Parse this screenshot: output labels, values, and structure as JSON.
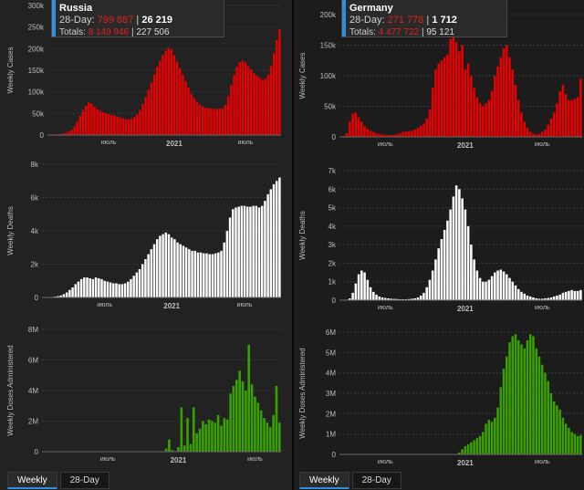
{
  "tabs": {
    "left": [
      {
        "label": "Weekly",
        "active": true
      },
      {
        "label": "28-Day",
        "active": false
      }
    ],
    "right": [
      {
        "label": "Weekly",
        "active": true
      },
      {
        "label": "28-Day",
        "active": false
      }
    ]
  },
  "infoboxes": [
    {
      "country": "Russia",
      "day28_label": "28-Day:",
      "day28_cases": "799 887",
      "day28_deaths": "26 219",
      "totals_label": "Totals:",
      "total_cases": "8 149 946",
      "total_deaths": "227 506",
      "separator": "|"
    },
    {
      "country": "Germany",
      "day28_label": "28-Day:",
      "day28_cases": "271 778",
      "day28_deaths": "1 712",
      "totals_label": "Totals:",
      "total_cases": "4 477 722",
      "total_deaths": "95 121",
      "separator": "|"
    }
  ],
  "colors": {
    "cases": "#e60000",
    "deaths": "#ffffff",
    "doses": "#3aa000",
    "axis_text": "#bdbdbd",
    "grid": "#3a3a3a",
    "accent": "#2e8fe0"
  },
  "chart_data": [
    {
      "type": "bar",
      "country": "Russia",
      "metric": "cases",
      "ylabel": "Weekly Cases",
      "ylim": [
        0,
        300000
      ],
      "yticks": [
        {
          "v": 0,
          "label": "0"
        },
        {
          "v": 50000,
          "label": "50k"
        },
        {
          "v": 100000,
          "label": "100k"
        },
        {
          "v": 150000,
          "label": "150k"
        },
        {
          "v": 200000,
          "label": "200k"
        },
        {
          "v": 250000,
          "label": "250k"
        },
        {
          "v": 300000,
          "label": "300k"
        }
      ],
      "xticks": [
        {
          "i": 21,
          "label": "июль",
          "bold": false
        },
        {
          "i": 44,
          "label": "2021",
          "bold": true
        },
        {
          "i": 69,
          "label": "июль",
          "bold": false
        }
      ],
      "values": [
        500,
        800,
        1200,
        1800,
        2500,
        3500,
        5000,
        8000,
        12000,
        20000,
        32000,
        45000,
        58000,
        68000,
        76000,
        73000,
        66000,
        60000,
        56000,
        53000,
        51000,
        49000,
        47000,
        45000,
        43000,
        41000,
        39000,
        37000,
        36000,
        38000,
        42000,
        48000,
        58000,
        72000,
        88000,
        105000,
        122000,
        140000,
        158000,
        172000,
        185000,
        195000,
        202000,
        198000,
        185000,
        170000,
        155000,
        140000,
        125000,
        110000,
        96000,
        86000,
        77000,
        70000,
        66000,
        63000,
        62000,
        61000,
        61000,
        60000,
        61000,
        62000,
        70000,
        90000,
        115000,
        140000,
        158000,
        168000,
        172000,
        168000,
        160000,
        152000,
        143000,
        138000,
        133000,
        128000,
        130000,
        140000,
        160000,
        190000,
        220000,
        245000
      ]
    },
    {
      "type": "bar",
      "country": "Russia",
      "metric": "deaths",
      "ylabel": "Weekly Deaths",
      "ylim": [
        0,
        8000
      ],
      "yticks": [
        {
          "v": 0,
          "label": "0"
        },
        {
          "v": 2000,
          "label": "2k"
        },
        {
          "v": 4000,
          "label": "4k"
        },
        {
          "v": 6000,
          "label": "6k"
        },
        {
          "v": 8000,
          "label": "8k"
        }
      ],
      "xticks": [
        {
          "i": 21,
          "label": "июль",
          "bold": false
        },
        {
          "i": 44,
          "label": "2021",
          "bold": true
        },
        {
          "i": 69,
          "label": "июль",
          "bold": false
        }
      ],
      "values": [
        5,
        10,
        20,
        30,
        50,
        80,
        120,
        200,
        300,
        450,
        600,
        800,
        950,
        1100,
        1200,
        1200,
        1150,
        1100,
        1200,
        1150,
        1100,
        1000,
        950,
        900,
        850,
        850,
        800,
        800,
        850,
        950,
        1100,
        1300,
        1500,
        1700,
        2000,
        2300,
        2600,
        2900,
        3200,
        3500,
        3700,
        3800,
        3900,
        3800,
        3600,
        3500,
        3300,
        3200,
        3100,
        3000,
        2900,
        2800,
        2800,
        2700,
        2700,
        2650,
        2650,
        2600,
        2600,
        2650,
        2700,
        2800,
        3300,
        4000,
        4800,
        5300,
        5400,
        5450,
        5500,
        5500,
        5450,
        5450,
        5500,
        5500,
        5400,
        5500,
        5800,
        6200,
        6500,
        6800,
        7000,
        7200
      ]
    },
    {
      "type": "bar",
      "country": "Russia",
      "metric": "doses",
      "ylabel": "Weekly Doses Administered",
      "ylim": [
        0,
        8000000
      ],
      "yticks": [
        {
          "v": 0,
          "label": "0"
        },
        {
          "v": 2000000,
          "label": "2M"
        },
        {
          "v": 4000000,
          "label": "4M"
        },
        {
          "v": 6000000,
          "label": "6M"
        },
        {
          "v": 8000000,
          "label": "8M"
        }
      ],
      "xticks": [
        {
          "i": 21,
          "label": "июль",
          "bold": false
        },
        {
          "i": 44,
          "label": "2021",
          "bold": true
        },
        {
          "i": 69,
          "label": "июль",
          "bold": false
        }
      ],
      "values": [
        0,
        0,
        0,
        0,
        0,
        0,
        0,
        0,
        0,
        0,
        0,
        0,
        0,
        0,
        0,
        0,
        0,
        0,
        0,
        0,
        0,
        0,
        0,
        0,
        0,
        0,
        0,
        0,
        0,
        0,
        0,
        0,
        0,
        0,
        0,
        0,
        0,
        0,
        0,
        0,
        200000,
        800000,
        100000,
        0,
        300000,
        2900000,
        400000,
        2200000,
        500000,
        2900000,
        1200000,
        1500000,
        2000000,
        1800000,
        2100000,
        2000000,
        1900000,
        2400000,
        1700000,
        2200000,
        2100000,
        3800000,
        4300000,
        4700000,
        5300000,
        4600000,
        4000000,
        7000000,
        4400000,
        3600000,
        3200000,
        2700000,
        2200000,
        1900000,
        1600000,
        2400000,
        4300000,
        1900000
      ]
    },
    {
      "type": "bar",
      "country": "Germany",
      "metric": "cases",
      "ylabel": "Weekly Cases",
      "ylim": [
        0,
        200000
      ],
      "yticks": [
        {
          "v": 0,
          "label": "0"
        },
        {
          "v": 50000,
          "label": "50k"
        },
        {
          "v": 100000,
          "label": "100k"
        },
        {
          "v": 150000,
          "label": "150k"
        },
        {
          "v": 200000,
          "label": "200k"
        }
      ],
      "xticks": [
        {
          "i": 15,
          "label": "июль",
          "bold": false
        },
        {
          "i": 42,
          "label": "2021",
          "bold": true
        },
        {
          "i": 68,
          "label": "июль",
          "bold": false
        }
      ],
      "values": [
        500,
        1500,
        6000,
        25000,
        38000,
        40000,
        32000,
        25000,
        18000,
        13000,
        10000,
        8000,
        6000,
        5000,
        4000,
        3500,
        3000,
        3000,
        3500,
        4500,
        6000,
        8000,
        9000,
        9500,
        10000,
        12000,
        15000,
        18000,
        22000,
        30000,
        45000,
        80000,
        110000,
        120000,
        125000,
        130000,
        135000,
        160000,
        175000,
        155000,
        140000,
        150000,
        110000,
        120000,
        100000,
        80000,
        65000,
        55000,
        50000,
        55000,
        60000,
        75000,
        100000,
        115000,
        130000,
        145000,
        150000,
        130000,
        110000,
        85000,
        60000,
        40000,
        25000,
        15000,
        8000,
        5000,
        4000,
        5000,
        8000,
        12000,
        20000,
        30000,
        40000,
        55000,
        75000,
        85000,
        70000,
        60000,
        60000,
        62000,
        65000,
        95000
      ]
    },
    {
      "type": "bar",
      "country": "Germany",
      "metric": "deaths",
      "ylabel": "Weekly Deaths",
      "ylim": [
        0,
        7000
      ],
      "yticks": [
        {
          "v": 0,
          "label": "0"
        },
        {
          "v": 1000,
          "label": "1k"
        },
        {
          "v": 2000,
          "label": "2k"
        },
        {
          "v": 3000,
          "label": "3k"
        },
        {
          "v": 4000,
          "label": "4k"
        },
        {
          "v": 5000,
          "label": "5k"
        },
        {
          "v": 6000,
          "label": "6k"
        },
        {
          "v": 7000,
          "label": "7k"
        }
      ],
      "xticks": [
        {
          "i": 15,
          "label": "июль",
          "bold": false
        },
        {
          "i": 42,
          "label": "2021",
          "bold": true
        },
        {
          "i": 68,
          "label": "июль",
          "bold": false
        }
      ],
      "values": [
        0,
        10,
        30,
        100,
        400,
        900,
        1400,
        1600,
        1500,
        1100,
        700,
        450,
        300,
        200,
        150,
        120,
        100,
        80,
        70,
        60,
        50,
        50,
        50,
        60,
        80,
        100,
        150,
        250,
        400,
        700,
        1100,
        1600,
        2200,
        2800,
        3300,
        3800,
        4300,
        4900,
        5600,
        6200,
        6000,
        5500,
        4900,
        4000,
        3000,
        2200,
        1600,
        1200,
        1000,
        1000,
        1100,
        1300,
        1500,
        1600,
        1650,
        1550,
        1400,
        1200,
        1000,
        800,
        600,
        450,
        350,
        250,
        200,
        150,
        100,
        80,
        80,
        100,
        120,
        150,
        200,
        250,
        300,
        400,
        450,
        500,
        550,
        500,
        500,
        550
      ]
    },
    {
      "type": "bar",
      "country": "Germany",
      "metric": "doses",
      "ylabel": "Weekly Doses Administered",
      "ylim": [
        0,
        6000000
      ],
      "yticks": [
        {
          "v": 0,
          "label": "0"
        },
        {
          "v": 1000000,
          "label": "1M"
        },
        {
          "v": 2000000,
          "label": "2M"
        },
        {
          "v": 3000000,
          "label": "3M"
        },
        {
          "v": 4000000,
          "label": "4M"
        },
        {
          "v": 5000000,
          "label": "5M"
        },
        {
          "v": 6000000,
          "label": "6M"
        }
      ],
      "xticks": [
        {
          "i": 15,
          "label": "июль",
          "bold": false
        },
        {
          "i": 42,
          "label": "2021",
          "bold": true
        },
        {
          "i": 68,
          "label": "июль",
          "bold": false
        }
      ],
      "values": [
        0,
        0,
        0,
        0,
        0,
        0,
        0,
        0,
        0,
        0,
        0,
        0,
        0,
        0,
        0,
        0,
        0,
        0,
        0,
        0,
        0,
        0,
        0,
        0,
        0,
        0,
        0,
        0,
        0,
        0,
        0,
        0,
        0,
        0,
        0,
        0,
        0,
        0,
        0,
        0,
        100000,
        250000,
        400000,
        500000,
        600000,
        700000,
        800000,
        900000,
        1100000,
        1500000,
        1700000,
        1600000,
        1800000,
        2300000,
        3300000,
        4200000,
        4800000,
        5500000,
        5800000,
        5900000,
        5600000,
        5400000,
        5200000,
        5600000,
        5900000,
        5800000,
        5200000,
        4800000,
        4400000,
        4000000,
        3600000,
        3000000,
        2600000,
        2400000,
        2200000,
        1800000,
        1500000,
        1300000,
        1100000,
        1000000,
        900000,
        950000
      ]
    }
  ]
}
